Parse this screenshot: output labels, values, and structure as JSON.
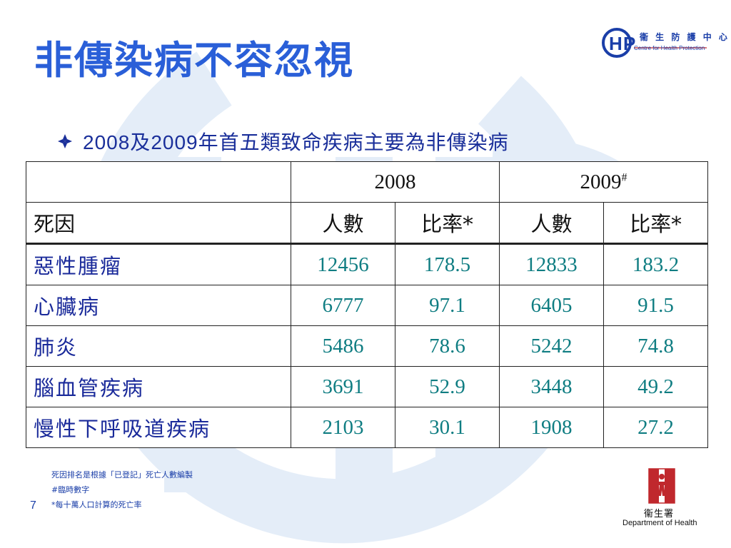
{
  "title": "非傳染病不容忽視",
  "logo": {
    "text_cn": "衞 生 防 護 中 心",
    "text_en": "Centre for Health Protection"
  },
  "bullet": {
    "icon": "diamond-bullet-icon",
    "year1": "2008",
    "conj": "及",
    "year2": "2009",
    "text": "年首五類致命疾病主要為非傳染病"
  },
  "table": {
    "years": [
      "2008",
      "2009"
    ],
    "year2_mark": "#",
    "col_header_label": "死因",
    "col_headers": [
      "人數",
      "比率*",
      "人數",
      "比率*"
    ],
    "rows": [
      {
        "cause": "惡性腫瘤",
        "values": [
          "12456",
          "178.5",
          "12833",
          "183.2"
        ]
      },
      {
        "cause": "心臟病",
        "values": [
          "6777",
          "97.1",
          "6405",
          "91.5"
        ]
      },
      {
        "cause": "肺炎",
        "values": [
          "5486",
          "78.6",
          "5242",
          "74.8"
        ]
      },
      {
        "cause": "腦血管疾病",
        "values": [
          "3691",
          "52.9",
          "3448",
          "49.2"
        ]
      },
      {
        "cause": "慢性下呼吸道疾病",
        "values": [
          "2103",
          "30.1",
          "1908",
          "27.2"
        ]
      }
    ]
  },
  "notes": [
    "死因排名是根據「已登記」死亡人數編製",
    "#臨時數字",
    "*每十萬人口計算的死亡率"
  ],
  "page_number": "7",
  "footer_logo": {
    "text_cn": "衞生署",
    "text_en": "Department of Health"
  },
  "colors": {
    "title": "#2a5fd8",
    "cause": "#1a2a9a",
    "number": "#0f7d82",
    "watermark": "#e4edf8"
  }
}
